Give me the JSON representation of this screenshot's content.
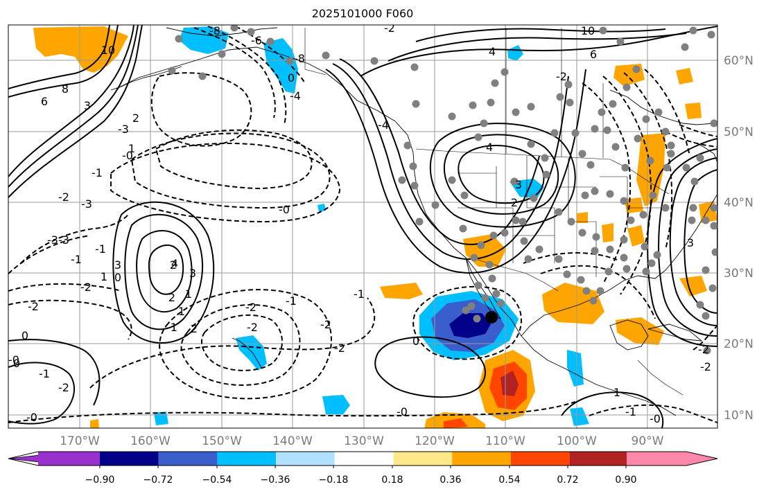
{
  "title": "2025101000 F060",
  "map": {
    "lon_labels": [
      "170°W",
      "160°W",
      "150°W",
      "140°W",
      "130°W",
      "120°W",
      "110°W",
      "100°W",
      "90°W"
    ],
    "lat_labels": [
      "60°N",
      "50°N",
      "40°N",
      "30°N",
      "20°N",
      "10°N"
    ],
    "contour_labels": [
      "-8",
      "-6",
      "-8",
      "-2",
      "-4",
      "0",
      "-3",
      "-1",
      "-2",
      "-4",
      "-3",
      "-0",
      "-3",
      "-2",
      "-1",
      "-2",
      "-2",
      "-1",
      "-2",
      "-2",
      "0",
      "-0",
      "-1",
      "-2",
      "0",
      "-0",
      "-1",
      "-2",
      "-1",
      "-3",
      "-0",
      "-1",
      "-0",
      "-1",
      "-2",
      "-0",
      "10",
      "6",
      "8",
      "6",
      "10",
      "4",
      "3",
      "2",
      "1",
      "4",
      "3",
      "2",
      "-2",
      "1",
      "-2",
      "1",
      "0",
      "2",
      "4",
      "3",
      "2",
      "3",
      "1",
      "2",
      "3",
      "1",
      "0"
    ],
    "colors": {
      "orange": "#ffa500",
      "deep_blue": "#00008b",
      "mid_blue": "#3a5ecb",
      "sky_blue": "#00bfff",
      "dark_orange": "#ff4500",
      "brick": "#b22222",
      "grid": "#9a9a9a",
      "point": "#808080"
    }
  },
  "colorbar": {
    "tick_labels": [
      "−0.90",
      "−0.72",
      "−0.54",
      "−0.36",
      "−0.18",
      "0.18",
      "0.36",
      "0.54",
      "0.72",
      "0.90"
    ],
    "colors": [
      "#9932cc",
      "#00008b",
      "#3a5ecb",
      "#00bfff",
      "#b0e2ff",
      "#ffffff",
      "#ffe88a",
      "#ffa500",
      "#ff4500",
      "#b22222",
      "#ff88aa"
    ]
  }
}
